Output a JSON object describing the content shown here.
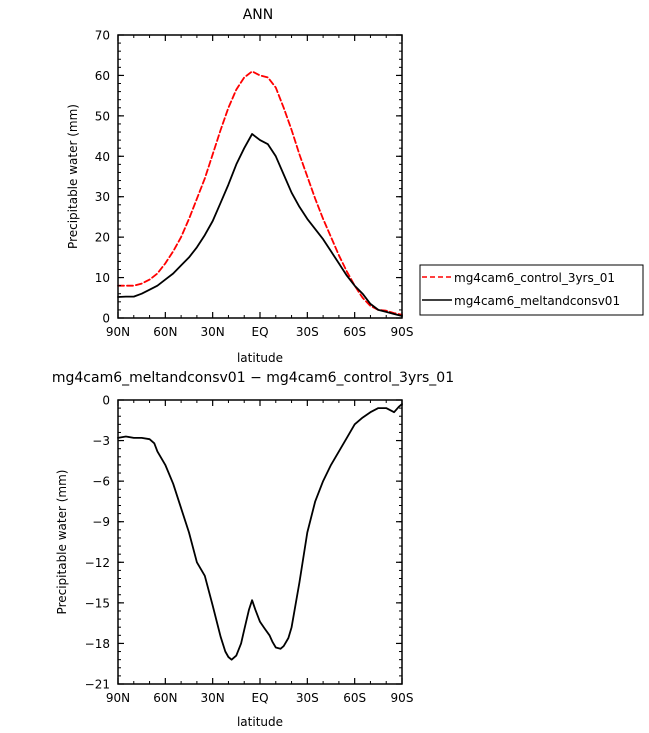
{
  "chart_data": [
    {
      "type": "line",
      "title": "ANN",
      "xlabel": "latitude",
      "ylabel": "Precipitable water (mm)",
      "xlim": [
        90,
        -90
      ],
      "ylim": [
        0,
        70
      ],
      "xticks": [
        90,
        60,
        30,
        0,
        -30,
        -60,
        -90
      ],
      "xtick_labels": [
        "90N",
        "60N",
        "30N",
        "EQ",
        "30S",
        "60S",
        "90S"
      ],
      "yticks": [
        0,
        10,
        20,
        30,
        40,
        50,
        60,
        70
      ],
      "ytick_labels": [
        "0",
        "10",
        "20",
        "30",
        "40",
        "50",
        "60",
        "70"
      ],
      "legend_position": "right",
      "series": [
        {
          "name": "mg4cam6_control_3yrs_01",
          "color": "#ff0000",
          "dash": "dashed",
          "x": [
            90,
            85,
            80,
            75,
            70,
            65,
            60,
            55,
            50,
            45,
            40,
            35,
            30,
            25,
            20,
            15,
            10,
            5,
            0,
            -5,
            -10,
            -15,
            -20,
            -25,
            -30,
            -35,
            -40,
            -45,
            -50,
            -55,
            -60,
            -65,
            -70,
            -75,
            -80,
            -85,
            -90
          ],
          "y": [
            8,
            8,
            8,
            8.5,
            9.5,
            11,
            13.5,
            16.5,
            20,
            24.5,
            29.5,
            34.5,
            40.5,
            46.5,
            52,
            56.5,
            59.5,
            61,
            60,
            59.5,
            57,
            52,
            46.5,
            40.5,
            35,
            29.5,
            24.5,
            20,
            15.5,
            11.5,
            8,
            5,
            3,
            2,
            1.8,
            1.2,
            0.8
          ]
        },
        {
          "name": "mg4cam6_meltandconsv01",
          "color": "#000000",
          "dash": "solid",
          "x": [
            90,
            85,
            80,
            75,
            70,
            65,
            60,
            55,
            50,
            45,
            40,
            35,
            30,
            25,
            20,
            15,
            10,
            5,
            0,
            -5,
            -10,
            -15,
            -20,
            -25,
            -30,
            -35,
            -40,
            -45,
            -50,
            -55,
            -60,
            -65,
            -70,
            -75,
            -80,
            -85,
            -90
          ],
          "y": [
            5.2,
            5.3,
            5.3,
            6,
            7,
            8,
            9.5,
            11,
            13,
            15,
            17.5,
            20.5,
            24,
            28.5,
            33,
            38,
            42,
            45.5,
            44,
            43,
            40,
            35.5,
            31,
            27.5,
            24.5,
            22,
            19.5,
            16.5,
            13.5,
            10.5,
            8,
            6,
            3.5,
            2,
            1.5,
            1,
            0.5
          ]
        }
      ]
    },
    {
      "type": "line",
      "title": "mg4cam6_meltandconsv01 − mg4cam6_control_3yrs_01",
      "xlabel": "latitude",
      "ylabel": "Precipitable water (mm)",
      "xlim": [
        90,
        -90
      ],
      "ylim": [
        -21,
        0
      ],
      "xticks": [
        90,
        60,
        30,
        0,
        -30,
        -60,
        -90
      ],
      "xtick_labels": [
        "90N",
        "60N",
        "30N",
        "EQ",
        "30S",
        "60S",
        "90S"
      ],
      "yticks": [
        0,
        -3,
        -6,
        -9,
        -12,
        -15,
        -18,
        -21
      ],
      "ytick_labels": [
        "0",
        "−3",
        "−6",
        "−9",
        "−12",
        "−15",
        "−18",
        "−21"
      ],
      "series": [
        {
          "color": "#000000",
          "dash": "solid",
          "x": [
            90,
            85,
            80,
            75,
            70,
            67,
            65,
            60,
            55,
            50,
            45,
            40,
            35,
            30,
            25,
            22,
            20,
            18,
            15,
            12,
            10,
            7,
            5,
            3,
            0,
            -3,
            -6,
            -8,
            -10,
            -13,
            -15,
            -18,
            -20,
            -25,
            -30,
            -35,
            -40,
            -45,
            -50,
            -55,
            -60,
            -65,
            -70,
            -75,
            -80,
            -85,
            -88,
            -90
          ],
          "y": [
            -2.8,
            -2.7,
            -2.8,
            -2.8,
            -2.9,
            -3.2,
            -3.8,
            -4.8,
            -6.2,
            -8,
            -9.8,
            -12,
            -13,
            -15.2,
            -17.5,
            -18.6,
            -19,
            -19.2,
            -18.9,
            -18,
            -17,
            -15.5,
            -14.8,
            -15.5,
            -16.4,
            -16.9,
            -17.4,
            -17.9,
            -18.3,
            -18.4,
            -18.2,
            -17.6,
            -16.8,
            -13.5,
            -9.8,
            -7.5,
            -6,
            -4.8,
            -3.8,
            -2.8,
            -1.8,
            -1.3,
            -0.9,
            -0.6,
            -0.6,
            -0.9,
            -0.5,
            -0.3
          ]
        }
      ]
    }
  ]
}
